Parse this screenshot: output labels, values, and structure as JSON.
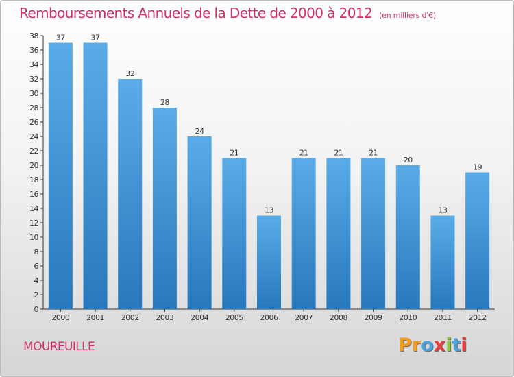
{
  "page": {
    "commune": "MOUREUILLE",
    "logo_text": "Proxiti",
    "logo_colors": [
      "#f39c1a",
      "#f39c1a",
      "#4aa3df",
      "#e53d3d",
      "#8dc63f",
      "#4aa3df",
      "#e53d3d"
    ]
  },
  "chart_data": {
    "type": "bar",
    "title": "Remboursements Annuels de la Dette de 2000 à 2012",
    "subtitle": "(en milliers d'€)",
    "xlabel": "",
    "ylabel": "",
    "categories": [
      "2000",
      "2001",
      "2002",
      "2003",
      "2004",
      "2005",
      "2006",
      "2007",
      "2008",
      "2009",
      "2010",
      "2011",
      "2012"
    ],
    "values": [
      37,
      37,
      32,
      28,
      24,
      21,
      13,
      21,
      21,
      21,
      20,
      13,
      19
    ],
    "data_labels": [
      "37",
      "37",
      "32",
      "28",
      "24",
      "21",
      "13",
      "21",
      "21",
      "21",
      "20",
      "13",
      "19"
    ],
    "ylim": [
      0,
      38
    ],
    "yticks": [
      0,
      2,
      4,
      6,
      8,
      10,
      12,
      14,
      16,
      18,
      20,
      22,
      24,
      26,
      28,
      30,
      32,
      34,
      36,
      38
    ],
    "grid": false,
    "legend": "none",
    "colors": {
      "bar_top": "#5aace8",
      "bar_bottom": "#2878bd",
      "text": "#333333",
      "title": "#cc2f6b"
    }
  }
}
